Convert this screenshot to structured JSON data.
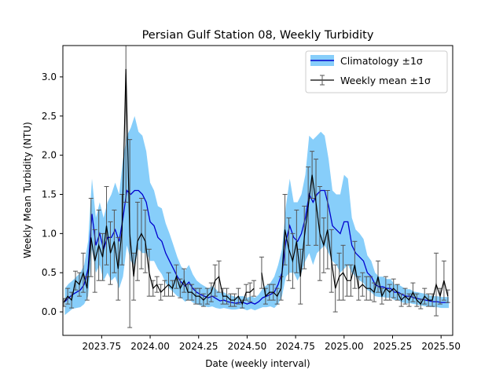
{
  "chart_data": {
    "type": "line",
    "title": "Persian Gulf Station 08, Weekly Turbidity",
    "xlabel": "Date (weekly interval)",
    "ylabel": "Weekly Mean Turbidity (NTU)",
    "xlim": [
      2023.55,
      2025.56
    ],
    "ylim": [
      -0.3,
      3.4
    ],
    "x_ticks": [
      2023.75,
      2024.0,
      2024.25,
      2024.5,
      2024.75,
      2025.0,
      2025.25,
      2025.5
    ],
    "x_tick_labels": [
      "2023.75",
      "2024.00",
      "2024.25",
      "2024.50",
      "2024.75",
      "2025.00",
      "2025.25",
      "2025.50"
    ],
    "y_ticks": [
      0.0,
      0.5,
      1.0,
      1.5,
      2.0,
      2.5,
      3.0
    ],
    "y_tick_labels": [
      "0.0",
      "0.5",
      "1.0",
      "1.5",
      "2.0",
      "2.5",
      "3.0"
    ],
    "grid": false,
    "legend_position": "top-right",
    "series": [
      {
        "name": "Climatology ±1σ",
        "color": "#0000cd",
        "band_color": "#87cefa",
        "x": [
          2023.56,
          2023.58,
          2023.6,
          2023.62,
          2023.64,
          2023.66,
          2023.68,
          2023.7,
          2023.72,
          2023.74,
          2023.76,
          2023.78,
          2023.8,
          2023.82,
          2023.84,
          2023.86,
          2023.88,
          2023.9,
          2023.92,
          2023.94,
          2023.96,
          2023.98,
          2024.0,
          2024.02,
          2024.04,
          2024.06,
          2024.08,
          2024.1,
          2024.12,
          2024.14,
          2024.16,
          2024.18,
          2024.2,
          2024.22,
          2024.24,
          2024.26,
          2024.28,
          2024.3,
          2024.32,
          2024.34,
          2024.36,
          2024.38,
          2024.4,
          2024.42,
          2024.44,
          2024.46,
          2024.48,
          2024.5,
          2024.52,
          2024.54,
          2024.56,
          2024.58,
          2024.6,
          2024.62,
          2024.64,
          2024.66,
          2024.68,
          2024.7,
          2024.72,
          2024.74,
          2024.76,
          2024.78,
          2024.8,
          2024.82,
          2024.84,
          2024.86,
          2024.88,
          2024.9,
          2024.92,
          2024.94,
          2024.96,
          2024.98,
          2025.0,
          2025.02,
          2025.04,
          2025.06,
          2025.08,
          2025.1,
          2025.12,
          2025.14,
          2025.16,
          2025.18,
          2025.2,
          2025.22,
          2025.24,
          2025.26,
          2025.28,
          2025.3,
          2025.32,
          2025.34,
          2025.36,
          2025.38,
          2025.4,
          2025.42,
          2025.44,
          2025.46,
          2025.48,
          2025.5,
          2025.52,
          2025.54
        ],
        "mean": [
          0.13,
          0.18,
          0.22,
          0.25,
          0.28,
          0.35,
          0.55,
          1.25,
          0.85,
          1.0,
          0.8,
          0.95,
          0.95,
          1.05,
          0.9,
          1.2,
          1.55,
          1.5,
          1.55,
          1.55,
          1.5,
          1.4,
          1.15,
          1.1,
          0.95,
          0.9,
          0.75,
          0.65,
          0.55,
          0.45,
          0.38,
          0.33,
          0.38,
          0.3,
          0.25,
          0.22,
          0.2,
          0.18,
          0.2,
          0.17,
          0.14,
          0.15,
          0.13,
          0.12,
          0.11,
          0.12,
          0.12,
          0.1,
          0.12,
          0.1,
          0.13,
          0.18,
          0.2,
          0.22,
          0.25,
          0.35,
          0.5,
          0.9,
          1.1,
          0.95,
          0.9,
          1.0,
          1.2,
          1.5,
          1.4,
          1.5,
          1.55,
          1.55,
          1.35,
          1.1,
          1.05,
          1.0,
          1.15,
          1.15,
          0.85,
          0.75,
          0.7,
          0.65,
          0.5,
          0.45,
          0.35,
          0.32,
          0.32,
          0.3,
          0.3,
          0.25,
          0.25,
          0.22,
          0.2,
          0.2,
          0.18,
          0.17,
          0.16,
          0.15,
          0.14,
          0.13,
          0.13,
          0.12,
          0.12,
          0.12
        ],
        "std": [
          0.17,
          0.18,
          0.18,
          0.2,
          0.22,
          0.25,
          0.35,
          0.45,
          0.35,
          0.4,
          0.4,
          0.45,
          0.55,
          0.6,
          0.6,
          0.75,
          0.7,
          0.85,
          0.95,
          0.75,
          0.75,
          0.65,
          0.5,
          0.45,
          0.4,
          0.42,
          0.38,
          0.35,
          0.3,
          0.25,
          0.2,
          0.2,
          0.22,
          0.18,
          0.15,
          0.14,
          0.13,
          0.12,
          0.13,
          0.12,
          0.1,
          0.1,
          0.09,
          0.09,
          0.08,
          0.08,
          0.08,
          0.08,
          0.08,
          0.08,
          0.09,
          0.12,
          0.14,
          0.15,
          0.2,
          0.25,
          0.3,
          0.45,
          0.6,
          0.45,
          0.5,
          0.5,
          0.55,
          0.75,
          0.8,
          0.75,
          0.75,
          0.7,
          0.6,
          0.45,
          0.45,
          0.5,
          0.6,
          0.55,
          0.35,
          0.3,
          0.3,
          0.28,
          0.22,
          0.2,
          0.15,
          0.13,
          0.13,
          0.12,
          0.12,
          0.1,
          0.1,
          0.1,
          0.09,
          0.09,
          0.08,
          0.08,
          0.08,
          0.08,
          0.07,
          0.07,
          0.07,
          0.07,
          0.07,
          0.07
        ]
      },
      {
        "name": "Weekly mean ±1σ",
        "color": "#000000",
        "errorbar_color": "#555555",
        "segments": [
          {
            "x": [
              2023.555,
              2023.575,
              2023.595,
              2023.615,
              2023.635,
              2023.655,
              2023.675,
              2023.695,
              2023.715,
              2023.735,
              2023.755,
              2023.775,
              2023.795,
              2023.815,
              2023.835,
              2023.855,
              2023.875,
              2023.895,
              2023.915,
              2023.935,
              2023.955,
              2023.975,
              2023.995,
              2024.015,
              2024.035,
              2024.055,
              2024.075,
              2024.095,
              2024.115,
              2024.135,
              2024.155,
              2024.175,
              2024.195,
              2024.215,
              2024.235,
              2024.255,
              2024.275,
              2024.295,
              2024.315,
              2024.335,
              2024.355,
              2024.375,
              2024.395,
              2024.415,
              2024.435,
              2024.455,
              2024.475,
              2024.495,
              2024.515,
              2024.535
            ],
            "y": [
              0.12,
              0.2,
              0.15,
              0.4,
              0.35,
              0.5,
              0.3,
              0.95,
              0.65,
              0.85,
              0.7,
              1.1,
              0.75,
              0.9,
              0.55,
              1.05,
              3.1,
              1.0,
              0.45,
              0.9,
              1.0,
              0.9,
              0.5,
              0.3,
              0.35,
              0.25,
              0.3,
              0.35,
              0.3,
              0.45,
              0.3,
              0.4,
              0.25,
              0.25,
              0.2,
              0.2,
              0.15,
              0.2,
              0.25,
              0.4,
              0.45,
              0.2,
              0.2,
              0.15,
              0.15,
              0.2,
              0.1,
              0.25,
              0.25,
              0.3
            ],
            "err": [
              0.05,
              0.1,
              0.1,
              0.12,
              0.15,
              0.25,
              0.15,
              0.5,
              0.4,
              0.45,
              0.3,
              0.5,
              0.4,
              0.4,
              0.4,
              0.45,
              1.7,
              1.2,
              0.3,
              0.5,
              0.45,
              0.4,
              0.3,
              0.1,
              0.1,
              0.1,
              0.1,
              0.15,
              0.1,
              0.15,
              0.12,
              0.15,
              0.1,
              0.1,
              0.1,
              0.1,
              0.08,
              0.1,
              0.12,
              0.2,
              0.2,
              0.1,
              0.1,
              0.08,
              0.08,
              0.1,
              0.05,
              0.1,
              0.12,
              0.1
            ]
          },
          {
            "x": [
              2024.575,
              2024.595,
              2024.615,
              2024.635,
              2024.655,
              2024.675,
              2024.695,
              2024.715,
              2024.735,
              2024.755,
              2024.775,
              2024.795,
              2024.815,
              2024.835,
              2024.855,
              2024.875,
              2024.895,
              2024.915,
              2024.935,
              2024.955,
              2024.975,
              2024.995,
              2025.015,
              2025.035,
              2025.055,
              2025.075,
              2025.095,
              2025.115,
              2025.135,
              2025.155,
              2025.175,
              2025.195,
              2025.215,
              2025.235,
              2025.255,
              2025.275,
              2025.295,
              2025.315,
              2025.335,
              2025.355,
              2025.375,
              2025.395,
              2025.415,
              2025.435,
              2025.455,
              2025.475,
              2025.495,
              2025.515,
              2025.535
            ],
            "y": [
              0.5,
              0.2,
              0.25,
              0.25,
              0.2,
              0.3,
              1.05,
              0.8,
              0.65,
              0.9,
              0.45,
              0.95,
              1.35,
              1.75,
              1.4,
              1.0,
              0.85,
              1.05,
              0.65,
              0.3,
              0.45,
              0.5,
              0.4,
              0.4,
              0.6,
              0.3,
              0.35,
              0.3,
              0.3,
              0.25,
              0.45,
              0.2,
              0.3,
              0.25,
              0.3,
              0.25,
              0.15,
              0.2,
              0.15,
              0.25,
              0.15,
              0.1,
              0.2,
              0.15,
              0.15,
              0.35,
              0.2,
              0.4,
              0.2
            ],
            "err": [
              0.2,
              0.1,
              0.1,
              0.1,
              0.1,
              0.15,
              0.45,
              0.4,
              0.35,
              0.4,
              0.35,
              0.4,
              0.5,
              0.3,
              0.55,
              0.6,
              0.35,
              0.5,
              0.4,
              0.3,
              0.3,
              0.35,
              0.2,
              0.2,
              0.3,
              0.15,
              0.15,
              0.15,
              0.15,
              0.12,
              0.2,
              0.1,
              0.15,
              0.1,
              0.12,
              0.1,
              0.08,
              0.1,
              0.08,
              0.12,
              0.08,
              0.06,
              0.1,
              0.08,
              0.08,
              0.4,
              0.1,
              0.25,
              0.08
            ]
          }
        ]
      }
    ]
  }
}
